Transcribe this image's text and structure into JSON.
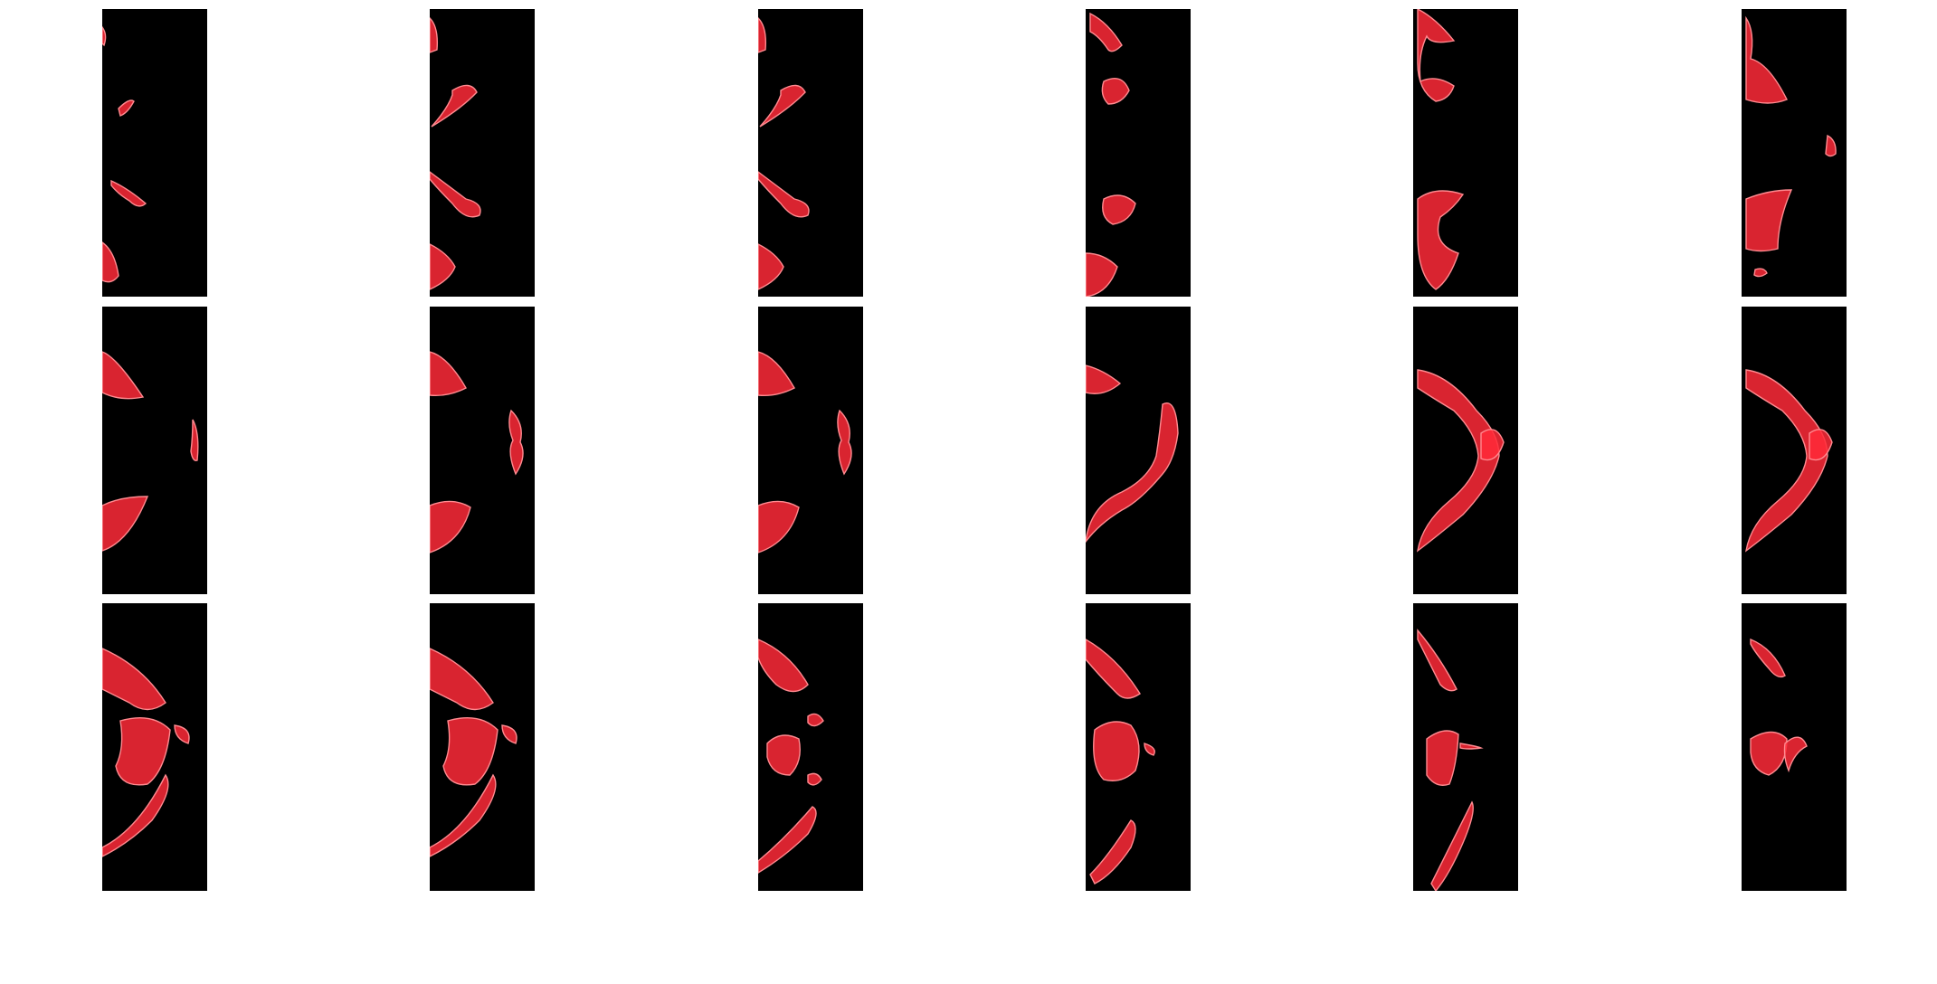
{
  "figure": {
    "layout": {
      "rows": 3,
      "columns": 6
    },
    "background": "#ffffff",
    "panel_background": "#000000",
    "bone_color": "#ff2a38",
    "bone_highlight": "#ff8a90",
    "panels": [
      {
        "id": "r1c1",
        "content": "scattered-fragments-left"
      },
      {
        "id": "r1c2",
        "content": "two-fragments-left"
      },
      {
        "id": "r1c3",
        "content": "two-fragments-left"
      },
      {
        "id": "r1c4",
        "content": "hook-fragments"
      },
      {
        "id": "r1c5",
        "content": "hook-fragments-dense"
      },
      {
        "id": "r1c6",
        "content": "large-wedges"
      },
      {
        "id": "r2c1",
        "content": "wedges-small-right"
      },
      {
        "id": "r2c2",
        "content": "wedges-vertebra"
      },
      {
        "id": "r2c3",
        "content": "wedges-vertebra"
      },
      {
        "id": "r2c4",
        "content": "arc-vertebra"
      },
      {
        "id": "r2c5",
        "content": "full-arc"
      },
      {
        "id": "r2c6",
        "content": "full-arc"
      },
      {
        "id": "r3c1",
        "content": "pelvis-broad"
      },
      {
        "id": "r3c2",
        "content": "pelvis-broad"
      },
      {
        "id": "r3c3",
        "content": "pelvis-fragments"
      },
      {
        "id": "r3c4",
        "content": "pelvis-narrow"
      },
      {
        "id": "r3c5",
        "content": "pelvis-sparse"
      },
      {
        "id": "r3c6",
        "content": "round-and-stick"
      }
    ]
  }
}
